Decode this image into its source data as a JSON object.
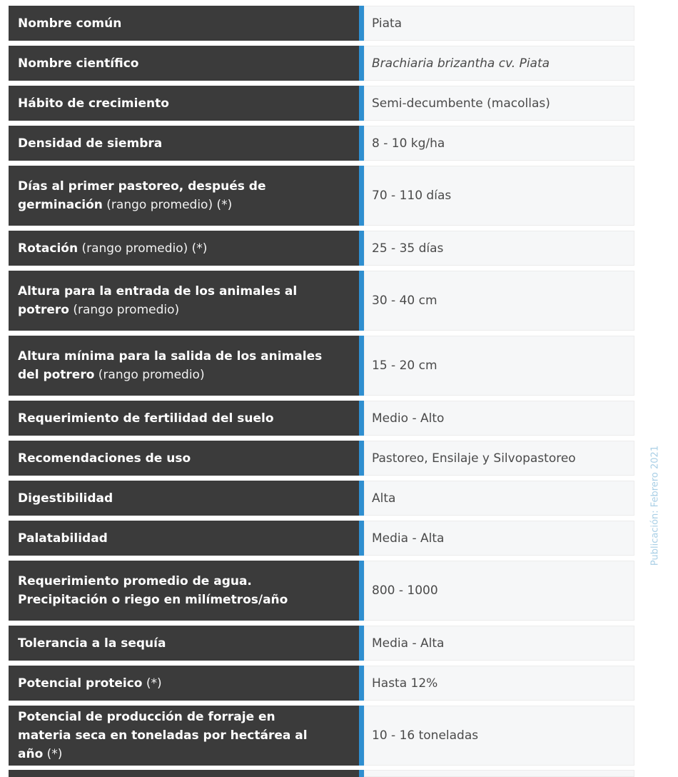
{
  "rows": [
    {
      "label": "Nombre común",
      "note": "",
      "value": "Piata",
      "italic": false,
      "tall": false
    },
    {
      "label": "Nombre científico",
      "note": "",
      "value": "Brachiaria brizantha cv. Piata",
      "italic": true,
      "tall": false
    },
    {
      "label": "Hábito de crecimiento",
      "note": "",
      "value": "Semi-decumbente (macollas)",
      "italic": false,
      "tall": false
    },
    {
      "label": "Densidad de siembra",
      "note": "",
      "value": "8 - 10 kg/ha",
      "italic": false,
      "tall": false
    },
    {
      "label": "Días al primer pastoreo, después de germinación",
      "note": " (rango promedio) (*)",
      "value": "70 - 110 días",
      "italic": false,
      "tall": true
    },
    {
      "label": "Rotación",
      "note": " (rango promedio) (*)",
      "value": "25 - 35 días",
      "italic": false,
      "tall": false
    },
    {
      "label": "Altura para la entrada de los animales al potrero",
      "note": " (rango promedio)",
      "value": "30 - 40 cm",
      "italic": false,
      "tall": true
    },
    {
      "label": "Altura mínima para la salida de los animales del potrero",
      "note": " (rango promedio)",
      "value": "15 - 20 cm",
      "italic": false,
      "tall": true
    },
    {
      "label": "Requerimiento de fertilidad del suelo",
      "note": "",
      "value": "Medio - Alto",
      "italic": false,
      "tall": false
    },
    {
      "label": "Recomendaciones de uso",
      "note": "",
      "value": "Pastoreo, Ensilaje y Silvopastoreo",
      "italic": false,
      "tall": false
    },
    {
      "label": "Digestibilidad",
      "note": "",
      "value": "Alta",
      "italic": false,
      "tall": false
    },
    {
      "label": "Palatabilidad",
      "note": "",
      "value": "Media - Alta",
      "italic": false,
      "tall": false
    },
    {
      "label": "Requerimiento promedio de agua. Precipitación o riego en milímetros/año",
      "note": "",
      "value": "800 - 1000",
      "italic": false,
      "tall": true
    },
    {
      "label": "Tolerancia a la sequía",
      "note": "",
      "value": "Media - Alta",
      "italic": false,
      "tall": false
    },
    {
      "label": "Potencial proteico",
      "note": " (*)",
      "value": "Hasta 12%",
      "italic": false,
      "tall": false
    },
    {
      "label": "Potencial de producción de forraje en materia seca en toneladas por hectárea al año",
      "note": " (*)",
      "value": "10 - 16 toneladas",
      "italic": false,
      "tall": true
    }
  ],
  "side_note": "Publicación: Febrero 2021",
  "colors": {
    "label_bg": "#3b3b3b",
    "accent": "#2f8fd0",
    "value_bg": "#f6f7f8",
    "side_note": "#a9cfe6"
  }
}
